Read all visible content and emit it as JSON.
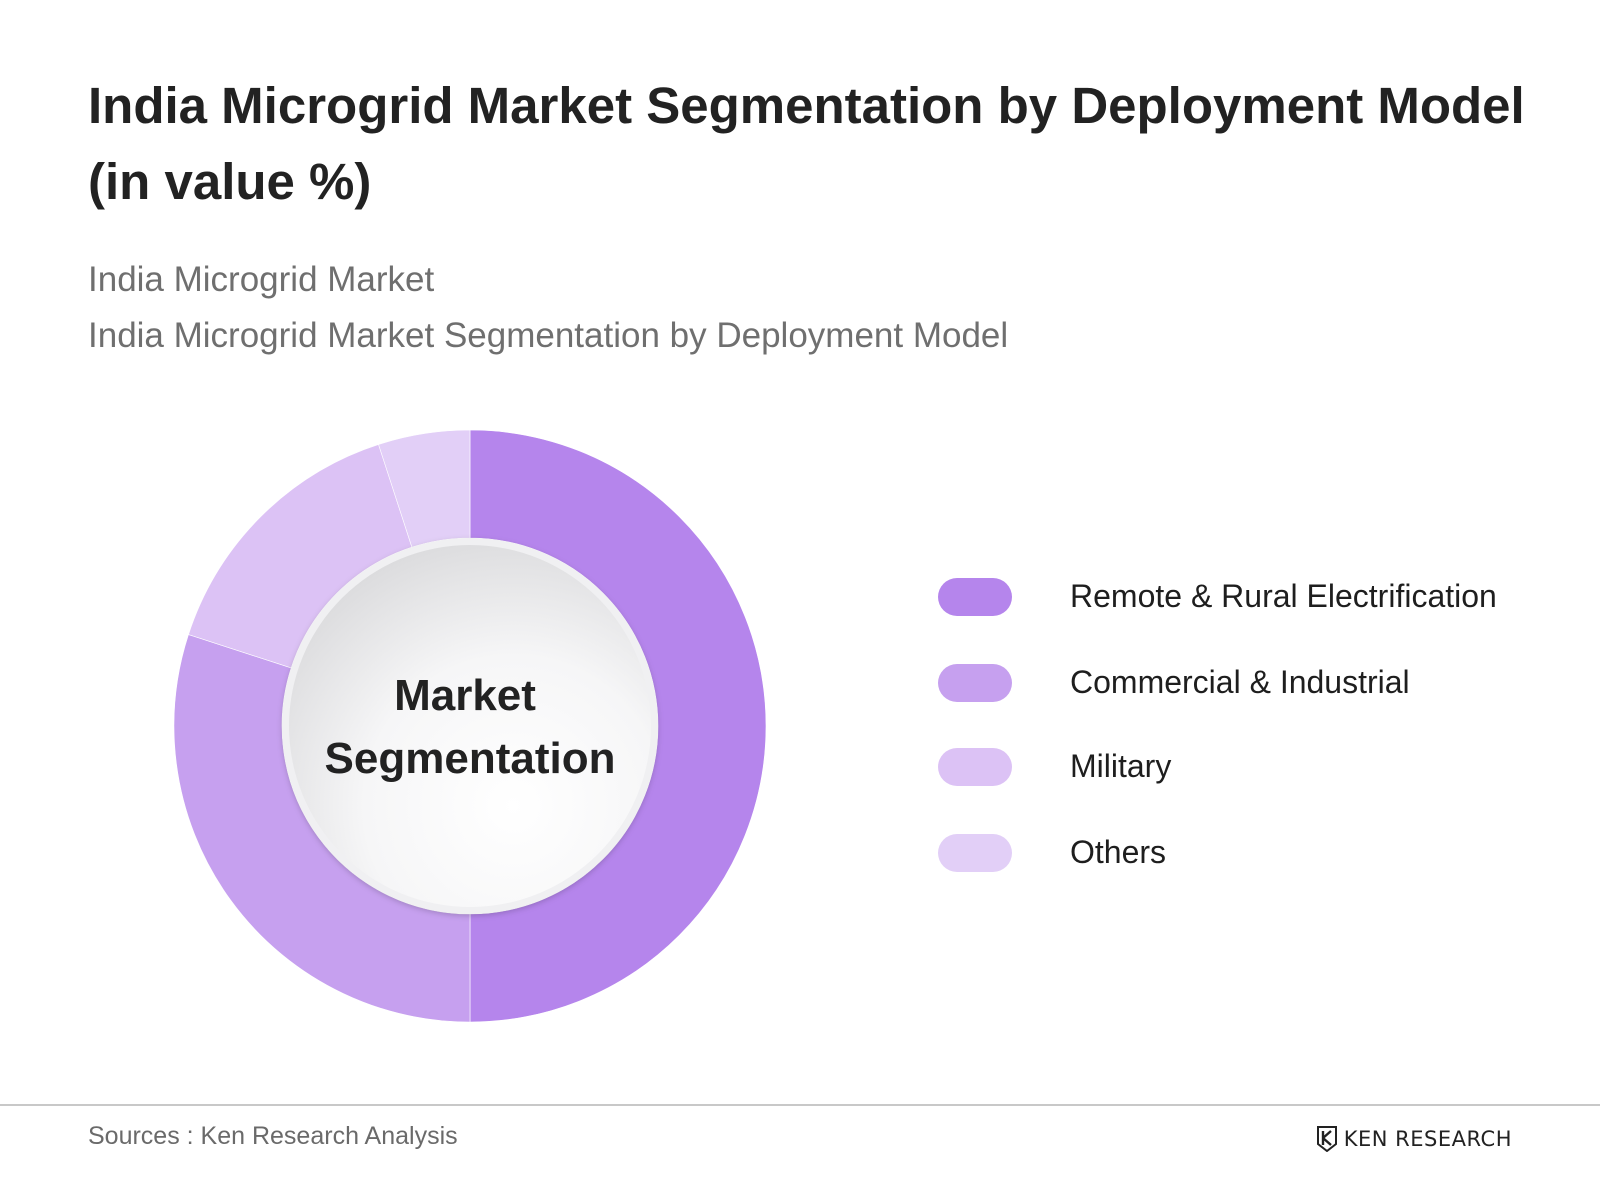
{
  "header": {
    "title": "India Microgrid Market Segmentation by Deployment Model (in value %)",
    "subtitle_1": "India Microgrid Market",
    "subtitle_2": "India Microgrid Market Segmentation by Deployment Model"
  },
  "chart_data": {
    "type": "pie",
    "center_label_line1": "Market",
    "center_label_line2": "Segmentation",
    "legend_position": "right",
    "categories": [
      "Remote & Rural Electrification",
      "Commercial & Industrial",
      "Military",
      "Others"
    ],
    "values": [
      50,
      30,
      15,
      5
    ],
    "colors": [
      "#b585ec",
      "#c6a0ef",
      "#dcc2f5",
      "#e2cff7"
    ]
  },
  "footer": {
    "source": "Sources : Ken Research Analysis",
    "brand": "KEN RESEARCH",
    "brand_icon": "ken-research-logo-icon"
  }
}
